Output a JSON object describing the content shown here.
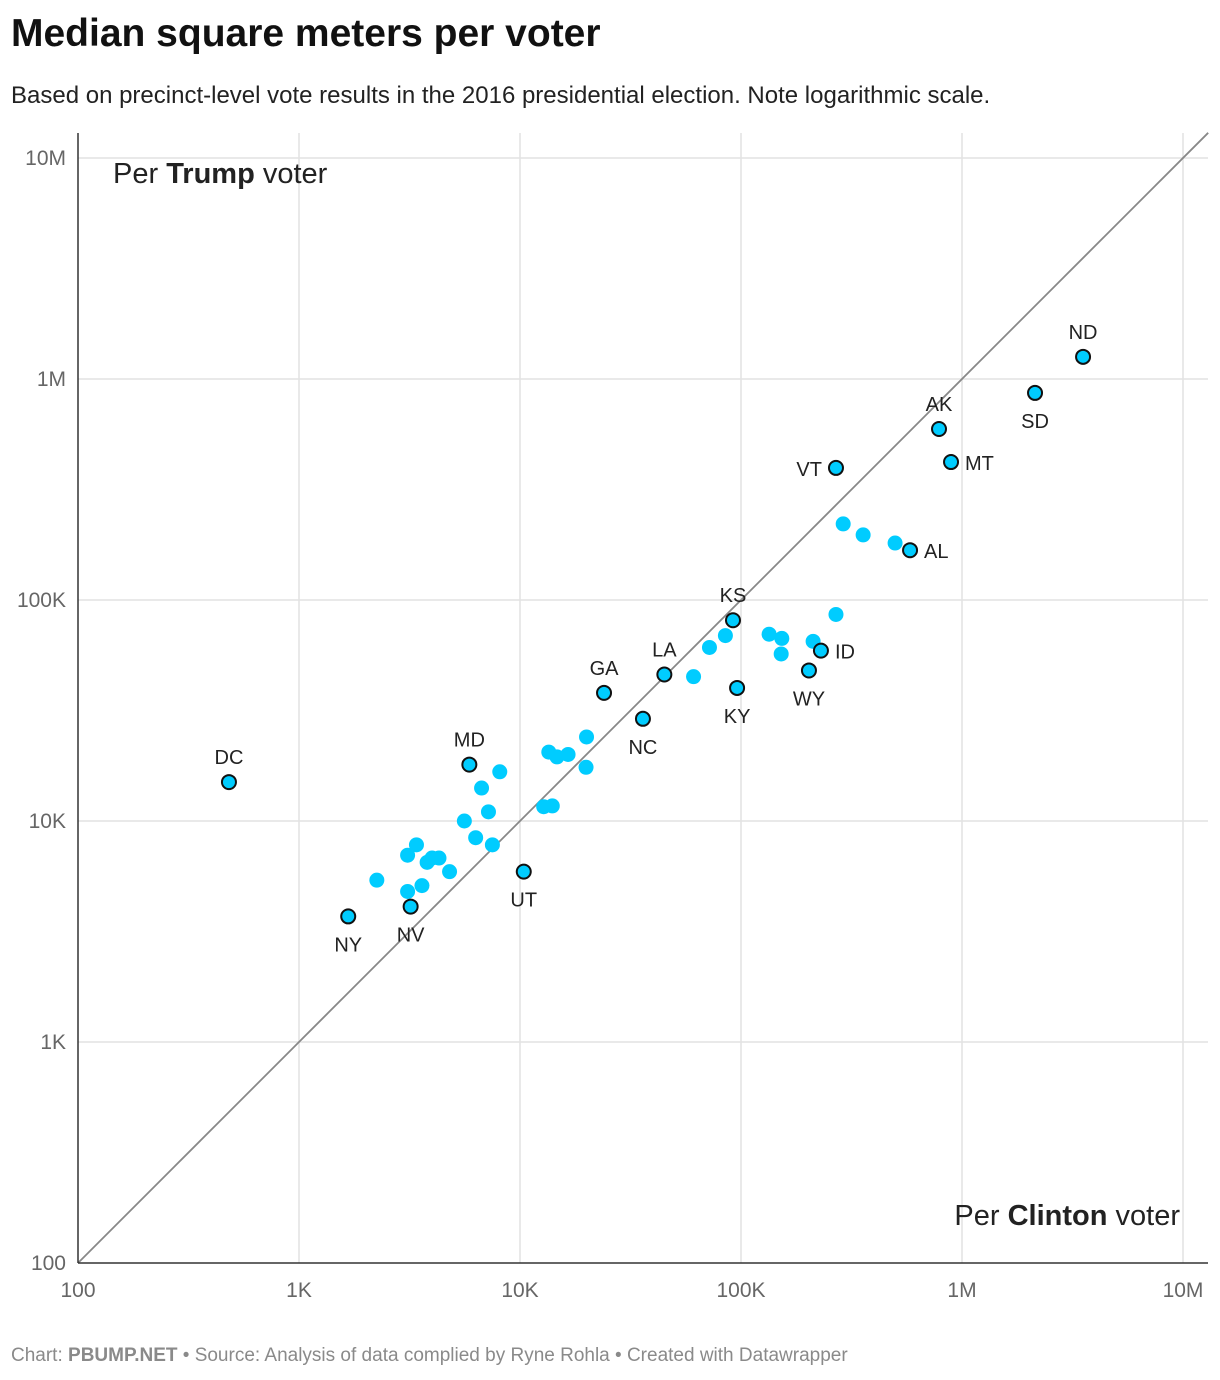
{
  "title": "Median square meters per voter",
  "subtitle": "Based on precinct-level vote results in the 2016 presidential election. Note logarithmic scale.",
  "footer": {
    "prefix": "Chart: ",
    "brand": "PBUMP.NET",
    "rest": " • Source: Analysis of data complied by Ryne Rohla • Created with Datawrapper"
  },
  "colors": {
    "point": "#00ccff",
    "point_outline": "#111111",
    "reference_line": "#888888",
    "grid": "#e2e2e2",
    "axis": "#333333"
  },
  "chart_data": {
    "type": "scatter",
    "title": "Median square meters per voter",
    "x_scale": "log",
    "y_scale": "log",
    "xlim": [
      100,
      13000000
    ],
    "ylim": [
      100,
      13000000
    ],
    "grid": true,
    "x_ticks": [
      {
        "v": 100,
        "label": "100"
      },
      {
        "v": 1000,
        "label": "1K"
      },
      {
        "v": 10000,
        "label": "10K"
      },
      {
        "v": 100000,
        "label": "100K"
      },
      {
        "v": 1000000,
        "label": "1M"
      },
      {
        "v": 10000000,
        "label": "10M"
      }
    ],
    "y_ticks": [
      {
        "v": 100,
        "label": "100"
      },
      {
        "v": 1000,
        "label": "1K"
      },
      {
        "v": 10000,
        "label": "10K"
      },
      {
        "v": 100000,
        "label": "100K"
      },
      {
        "v": 1000000,
        "label": "1M"
      },
      {
        "v": 10000000,
        "label": "10M"
      }
    ],
    "xlabel_pre": "Per ",
    "xlabel_bold": "Clinton",
    "xlabel_post": " voter",
    "ylabel_pre": "Per ",
    "ylabel_bold": "Trump",
    "ylabel_post": " voter",
    "reference_line": "y = x",
    "labeled_points": [
      {
        "label": "ND",
        "x": 3530000,
        "y": 1260000,
        "pos": "above"
      },
      {
        "label": "SD",
        "x": 2140000,
        "y": 865000,
        "pos": "below"
      },
      {
        "label": "AK",
        "x": 787000,
        "y": 594000,
        "pos": "above"
      },
      {
        "label": "MT",
        "x": 892000,
        "y": 421000,
        "pos": "right"
      },
      {
        "label": "VT",
        "x": 269000,
        "y": 396000,
        "pos": "left"
      },
      {
        "label": "AL",
        "x": 582000,
        "y": 168000,
        "pos": "right"
      },
      {
        "label": "KS",
        "x": 92000,
        "y": 81000,
        "pos": "above"
      },
      {
        "label": "ID",
        "x": 230000,
        "y": 59000,
        "pos": "right"
      },
      {
        "label": "WY",
        "x": 203000,
        "y": 48000,
        "pos": "below"
      },
      {
        "label": "KY",
        "x": 96000,
        "y": 40000,
        "pos": "below"
      },
      {
        "label": "LA",
        "x": 45000,
        "y": 46000,
        "pos": "above"
      },
      {
        "label": "GA",
        "x": 24000,
        "y": 38000,
        "pos": "above"
      },
      {
        "label": "NC",
        "x": 36000,
        "y": 29000,
        "pos": "below"
      },
      {
        "label": "MD",
        "x": 5900,
        "y": 18000,
        "pos": "above"
      },
      {
        "label": "DC",
        "x": 482,
        "y": 15000,
        "pos": "above"
      },
      {
        "label": "UT",
        "x": 10400,
        "y": 5900,
        "pos": "below"
      },
      {
        "label": "NY",
        "x": 1670,
        "y": 3700,
        "pos": "below"
      },
      {
        "label": "NV",
        "x": 3200,
        "y": 4100,
        "pos": "below"
      }
    ],
    "points": [
      {
        "x": 290000,
        "y": 221000
      },
      {
        "x": 357000,
        "y": 197000
      },
      {
        "x": 498000,
        "y": 181000
      },
      {
        "x": 269000,
        "y": 86000
      },
      {
        "x": 134000,
        "y": 70000
      },
      {
        "x": 153000,
        "y": 67000
      },
      {
        "x": 152000,
        "y": 57000
      },
      {
        "x": 212000,
        "y": 65000
      },
      {
        "x": 85000,
        "y": 69000
      },
      {
        "x": 72000,
        "y": 61000
      },
      {
        "x": 61000,
        "y": 45000
      },
      {
        "x": 20000,
        "y": 24000
      },
      {
        "x": 19900,
        "y": 17500
      },
      {
        "x": 13500,
        "y": 20500
      },
      {
        "x": 14700,
        "y": 19500
      },
      {
        "x": 16500,
        "y": 20000
      },
      {
        "x": 12800,
        "y": 11600
      },
      {
        "x": 14000,
        "y": 11700
      },
      {
        "x": 8100,
        "y": 16700
      },
      {
        "x": 6700,
        "y": 14100
      },
      {
        "x": 7200,
        "y": 11000
      },
      {
        "x": 5600,
        "y": 10000
      },
      {
        "x": 6300,
        "y": 8400
      },
      {
        "x": 7500,
        "y": 7800
      },
      {
        "x": 3400,
        "y": 7800
      },
      {
        "x": 3100,
        "y": 7000
      },
      {
        "x": 3800,
        "y": 6500
      },
      {
        "x": 4000,
        "y": 6800
      },
      {
        "x": 4300,
        "y": 6800
      },
      {
        "x": 4800,
        "y": 5900
      },
      {
        "x": 2250,
        "y": 5400
      },
      {
        "x": 3100,
        "y": 4800
      },
      {
        "x": 3600,
        "y": 5100
      }
    ]
  }
}
